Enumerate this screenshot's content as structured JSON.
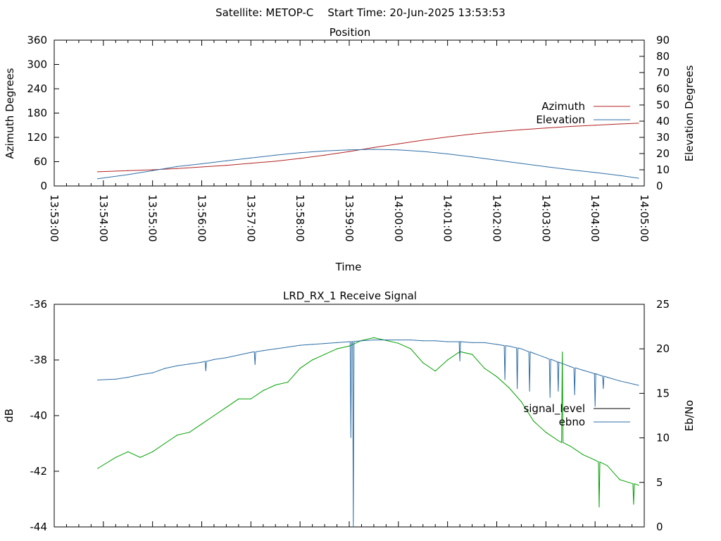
{
  "header": {
    "satellite_label": "Satellite: METOP-C",
    "start_time_label": "Start Time: 20-Jun-2025 13:53:53"
  },
  "chart_data": [
    {
      "type": "line",
      "title": "Position",
      "xlabel": "Time",
      "ylabel": "Azimuth Degrees",
      "y2label": "Elevation Degrees",
      "x_ticks": [
        "13:53:00",
        "13:54:00",
        "13:55:00",
        "13:56:00",
        "13:57:00",
        "13:58:00",
        "13:59:00",
        "14:00:00",
        "14:01:00",
        "14:02:00",
        "14:03:00",
        "14:04:00",
        "14:05:00"
      ],
      "xlim": [
        "13:53:00",
        "14:05:00"
      ],
      "y_ticks": [
        0,
        60,
        120,
        180,
        240,
        300,
        360
      ],
      "ylim": [
        0,
        360
      ],
      "y2_ticks": [
        0,
        10,
        20,
        30,
        40,
        50,
        60,
        70,
        80,
        90
      ],
      "y2lim": [
        0,
        90
      ],
      "legend_position": "right",
      "x": [
        "13:53:53",
        "13:54:30",
        "13:55:00",
        "13:55:30",
        "13:56:00",
        "13:56:30",
        "13:57:00",
        "13:57:30",
        "13:58:00",
        "13:58:30",
        "13:59:00",
        "13:59:30",
        "14:00:00",
        "14:00:30",
        "14:01:00",
        "14:01:30",
        "14:02:00",
        "14:02:30",
        "14:03:00",
        "14:03:30",
        "14:04:00",
        "14:04:30",
        "14:04:53"
      ],
      "series": [
        {
          "name": "Azimuth",
          "axis": "left",
          "color": "#b22222",
          "values": [
            35,
            38,
            40,
            43,
            47,
            51,
            56,
            61,
            68,
            76,
            85,
            95,
            104,
            113,
            121,
            128,
            134,
            139,
            143,
            147,
            150,
            153,
            155
          ]
        },
        {
          "name": "Elevation",
          "axis": "right",
          "color": "#2e6ea6",
          "values": [
            4.5,
            7,
            9.5,
            12,
            13.7,
            15.5,
            17.3,
            19,
            20.5,
            21.6,
            22.3,
            22.6,
            22.3,
            21.3,
            19.8,
            17.9,
            15.9,
            13.9,
            11.9,
            10,
            8.3,
            6.5,
            4.8
          ]
        }
      ]
    },
    {
      "type": "line",
      "title": "LRD_RX_1 Receive Signal",
      "ylabel": "dB",
      "y2label": "Eb/No",
      "y_ticks": [
        -44,
        -42,
        -40,
        -38,
        -36
      ],
      "ylim": [
        -44,
        -36
      ],
      "y2_ticks": [
        0,
        5,
        10,
        15,
        20,
        25
      ],
      "y2lim": [
        0,
        25
      ],
      "xlim": [
        "13:53:00",
        "14:05:00"
      ],
      "legend_position": "right",
      "x": [
        "13:53:53",
        "13:54:15",
        "13:54:30",
        "13:54:45",
        "13:55:00",
        "13:55:15",
        "13:55:30",
        "13:55:45",
        "13:56:00",
        "13:56:15",
        "13:56:30",
        "13:56:45",
        "13:57:00",
        "13:57:15",
        "13:57:30",
        "13:57:45",
        "13:58:00",
        "13:58:15",
        "13:58:30",
        "13:58:45",
        "13:59:00",
        "13:59:15",
        "13:59:30",
        "13:59:45",
        "14:00:00",
        "14:00:15",
        "14:00:30",
        "14:00:45",
        "14:01:00",
        "14:01:15",
        "14:01:30",
        "14:01:45",
        "14:02:00",
        "14:02:15",
        "14:02:30",
        "14:02:45",
        "14:03:00",
        "14:03:15",
        "14:03:30",
        "14:03:45",
        "14:04:00",
        "14:04:15",
        "14:04:30",
        "14:04:53"
      ],
      "series": [
        {
          "name": "signal_level",
          "axis": "left",
          "color": "#00a000",
          "values": [
            -41.9,
            -41.5,
            -41.3,
            -41.5,
            -41.3,
            -41.0,
            -40.7,
            -40.6,
            -40.3,
            -40.0,
            -39.7,
            -39.4,
            -39.4,
            -39.1,
            -38.9,
            -38.8,
            -38.3,
            -38.0,
            -37.8,
            -37.6,
            -37.5,
            -37.3,
            -37.2,
            -37.3,
            -37.4,
            -37.6,
            -38.1,
            -38.4,
            -38.0,
            -37.7,
            -37.8,
            -38.3,
            -38.6,
            -39.0,
            -39.5,
            -40.2,
            -40.6,
            -40.9,
            -41.1,
            -41.4,
            -41.6,
            -41.8,
            -42.3,
            -42.5
          ]
        },
        {
          "name": "ebno",
          "axis": "right",
          "color": "#2e6ea6",
          "values": [
            16.5,
            16.6,
            16.8,
            17.1,
            17.3,
            17.8,
            18.1,
            18.3,
            18.5,
            18.8,
            19.0,
            19.3,
            19.6,
            19.8,
            20.0,
            20.2,
            20.4,
            20.5,
            20.6,
            20.7,
            20.8,
            20.9,
            21.0,
            21.0,
            21.0,
            21.0,
            20.9,
            20.9,
            20.8,
            20.8,
            20.7,
            20.7,
            20.5,
            20.3,
            20.0,
            19.5,
            19.0,
            18.5,
            18.0,
            17.6,
            17.2,
            16.8,
            16.4,
            15.9
          ]
        }
      ],
      "dropouts": [
        {
          "series": "ebno",
          "x": "13:59:05",
          "value": 0
        },
        {
          "series": "ebno",
          "x": "13:59:02",
          "value": 10
        },
        {
          "series": "ebno",
          "x": "13:56:05",
          "value": 17.5
        },
        {
          "series": "ebno",
          "x": "13:57:05",
          "value": 18.2
        },
        {
          "series": "ebno",
          "x": "14:01:15",
          "value": 18.6
        },
        {
          "series": "ebno",
          "x": "14:02:10",
          "value": 16.5
        },
        {
          "series": "ebno",
          "x": "14:02:25",
          "value": 15.5
        },
        {
          "series": "ebno",
          "x": "14:02:40",
          "value": 15.2
        },
        {
          "series": "ebno",
          "x": "14:03:05",
          "value": 14.5
        },
        {
          "series": "ebno",
          "x": "14:03:15",
          "value": 15.2
        },
        {
          "series": "ebno",
          "x": "14:03:35",
          "value": 14.8
        },
        {
          "series": "ebno",
          "x": "14:04:00",
          "value": 13.5
        },
        {
          "series": "ebno",
          "x": "14:04:10",
          "value": 15.5
        },
        {
          "series": "signal_level",
          "x": "14:03:20",
          "value": -37.7
        },
        {
          "series": "signal_level",
          "x": "14:04:05",
          "value": -43.3
        },
        {
          "series": "signal_level",
          "x": "14:04:47",
          "value": -43.2
        }
      ]
    }
  ]
}
